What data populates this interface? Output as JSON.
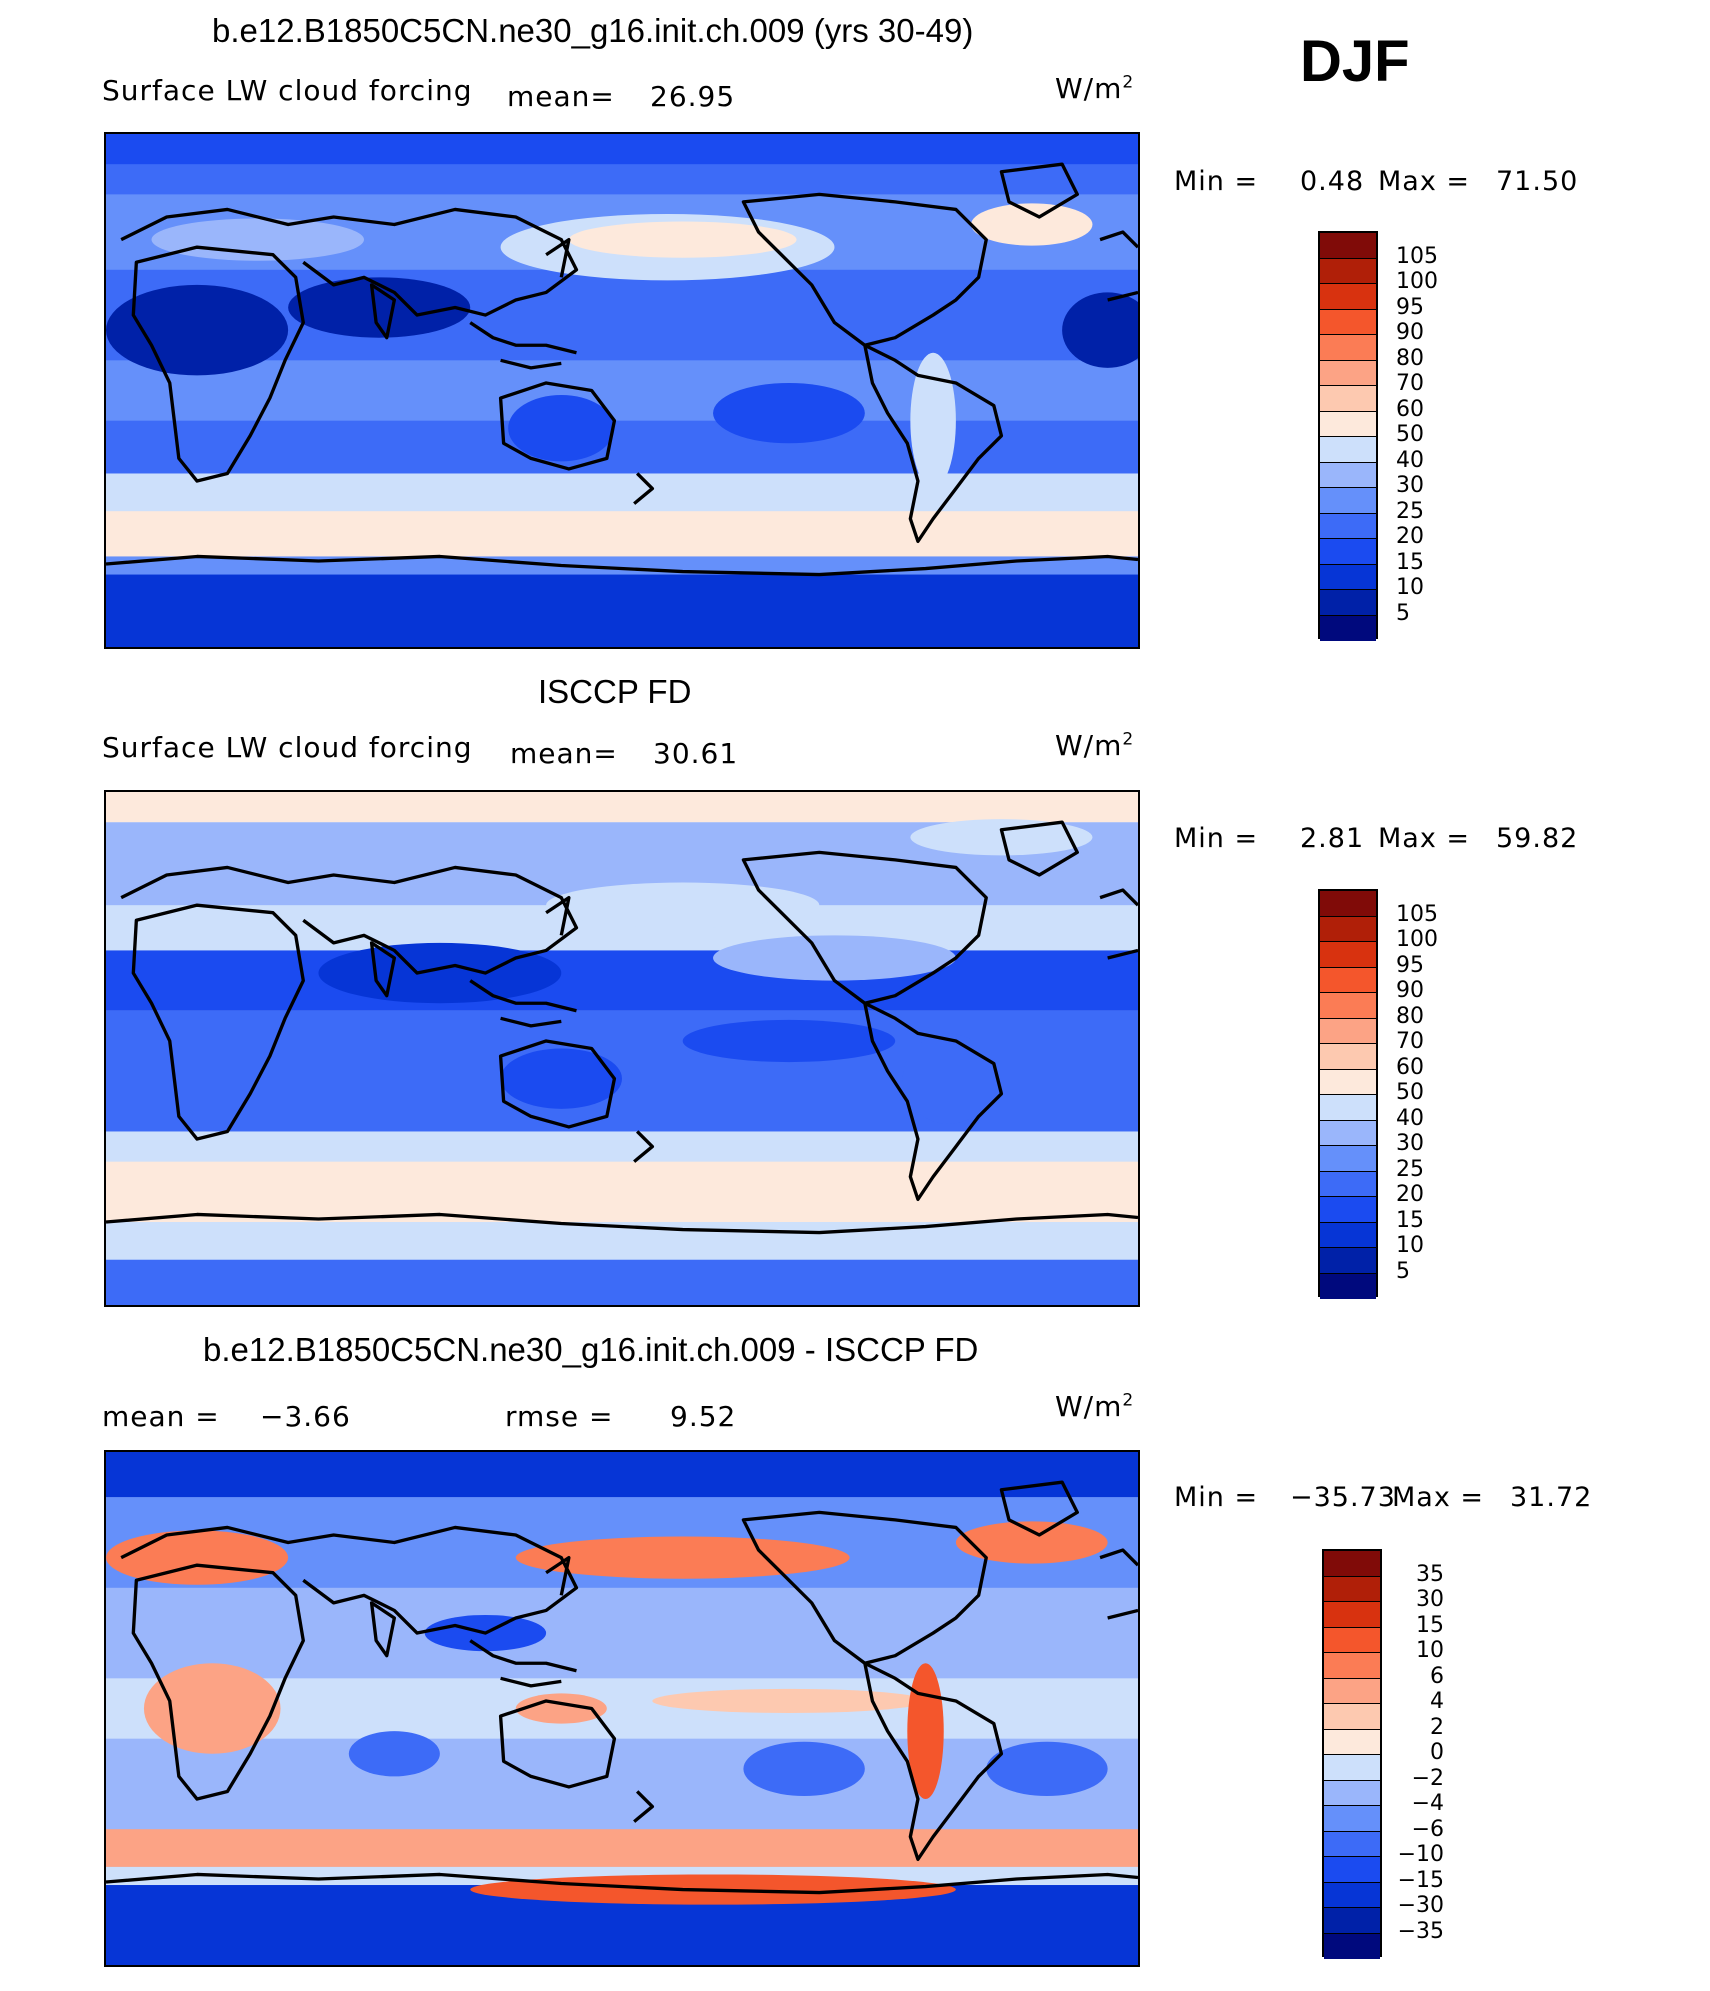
{
  "season": "DJF",
  "unit_base": "W/m",
  "unit_exp": "2",
  "colors": {
    "positive_scale": [
      "#00097d",
      "#0021a8",
      "#0635d6",
      "#1b4bf0",
      "#3d6bf7",
      "#6590fa",
      "#9ab6fb",
      "#cde0fb",
      "#fde9dc",
      "#fdc9b0",
      "#fca385",
      "#fb7c55",
      "#f4562c",
      "#d8320f",
      "#b01f08",
      "#800b08"
    ],
    "diff_scale": [
      "#00097d",
      "#0021a8",
      "#0635d6",
      "#1b4bf0",
      "#3d6bf7",
      "#6590fa",
      "#9ab6fb",
      "#cde0fb",
      "#fde9dc",
      "#fdc9b0",
      "#fca385",
      "#fb7c55",
      "#f4562c",
      "#d8320f",
      "#b01f08",
      "#800b08"
    ]
  },
  "panels": [
    {
      "title": "b.e12.B1850C5CN.ne30_g16.init.ch.009 (yrs 30-49)",
      "variable": "Surface LW cloud forcing",
      "mean_label": "mean=",
      "mean_value": "26.95",
      "min_label": "Min =",
      "min_value": "0.48",
      "max_label": "Max =",
      "max_value": "71.50",
      "levels": [
        "105",
        "100",
        "95",
        "90",
        "80",
        "70",
        "60",
        "50",
        "40",
        "30",
        "25",
        "20",
        "15",
        "10",
        "5"
      ]
    },
    {
      "title": "ISCCP FD",
      "variable": "Surface LW cloud forcing",
      "mean_label": "mean=",
      "mean_value": "30.61",
      "min_label": "Min =",
      "min_value": "2.81",
      "max_label": "Max =",
      "max_value": "59.82",
      "levels": [
        "105",
        "100",
        "95",
        "90",
        "80",
        "70",
        "60",
        "50",
        "40",
        "30",
        "25",
        "20",
        "15",
        "10",
        "5"
      ]
    },
    {
      "title": "b.e12.B1850C5CN.ne30_g16.init.ch.009 - ISCCP FD",
      "mean_label": "mean =",
      "mean_value": "−3.66",
      "rmse_label": "rmse =",
      "rmse_value": "9.52",
      "min_label": "Min =",
      "min_value": "−35.73",
      "max_label": "Max =",
      "max_value": "31.72",
      "levels": [
        "35",
        "30",
        "15",
        "10",
        "6",
        "4",
        "2",
        "0",
        "−2",
        "−4",
        "−6",
        "−10",
        "−15",
        "−30",
        "−35"
      ]
    }
  ]
}
